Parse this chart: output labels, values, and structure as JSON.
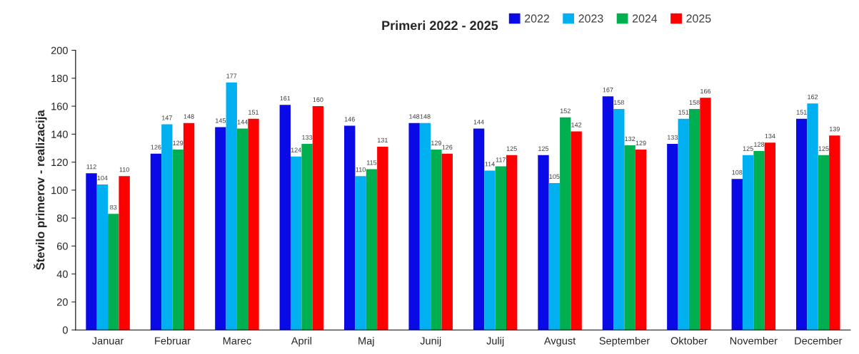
{
  "chart_data": {
    "type": "bar",
    "title": "Primeri 2022 - 2025",
    "ylabel": "Število primerov - realizacija",
    "categories": [
      "Januar",
      "Februar",
      "Marec",
      "April",
      "Maj",
      "Junij",
      "Julij",
      "Avgust",
      "September",
      "Oktober",
      "November",
      "December"
    ],
    "series": [
      {
        "name": "2022",
        "color": "#0a0ae6",
        "values": [
          112,
          126,
          145,
          161,
          146,
          148,
          144,
          125,
          167,
          133,
          108,
          151
        ]
      },
      {
        "name": "2023",
        "color": "#00b0f0",
        "values": [
          104,
          147,
          177,
          124,
          110,
          148,
          114,
          105,
          158,
          151,
          125,
          162
        ]
      },
      {
        "name": "2024",
        "color": "#00b050",
        "values": [
          83,
          129,
          144,
          133,
          115,
          129,
          117,
          152,
          132,
          158,
          128,
          125
        ]
      },
      {
        "name": "2025",
        "color": "#ff0000",
        "values": [
          110,
          148,
          151,
          160,
          131,
          126,
          125,
          142,
          129,
          166,
          134,
          139
        ]
      }
    ],
    "ylim": [
      0,
      200
    ],
    "yticks": [
      0,
      20,
      40,
      60,
      80,
      100,
      120,
      140,
      160,
      180,
      200
    ],
    "grid": false,
    "legend": "top right",
    "data_labels": true
  }
}
